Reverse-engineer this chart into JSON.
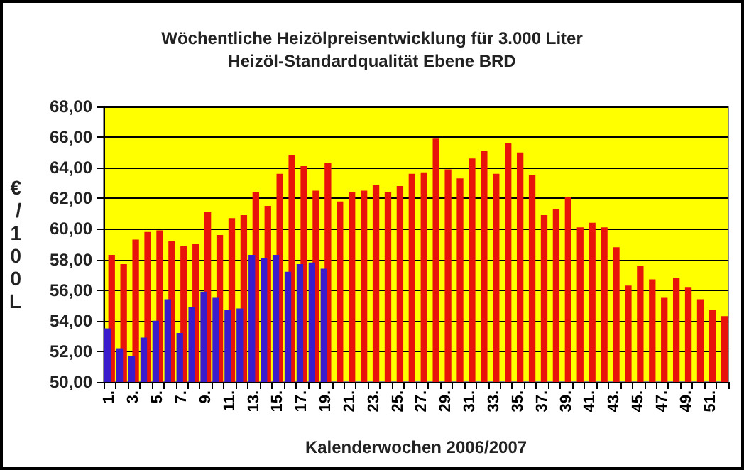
{
  "chart_data": {
    "type": "bar",
    "title": "Wöchentliche Heizölpreisentwicklung für 3.000 Liter",
    "subtitle": "Heizöl-Standardqualität Ebene BRD",
    "xlabel": "Kalenderwochen 2006/2007",
    "ylabel": "€/100L",
    "categories": [
      "1.",
      null,
      "3.",
      null,
      "5.",
      null,
      "7.",
      null,
      "9.",
      null,
      "11.",
      null,
      "13.",
      null,
      "15.",
      null,
      "17.",
      null,
      "19.",
      null,
      "21.",
      null,
      "23.",
      null,
      "25.",
      null,
      "27.",
      null,
      "29.",
      null,
      "31.",
      null,
      "33.",
      null,
      "35.",
      null,
      "37.",
      null,
      "39.",
      null,
      "41.",
      null,
      "43.",
      null,
      "45.",
      null,
      "47.",
      null,
      "49.",
      null,
      "51.",
      null
    ],
    "series": [
      {
        "color": "#e8140c",
        "values": [
          58.3,
          57.7,
          59.3,
          59.8,
          59.9,
          59.2,
          58.9,
          59.0,
          61.1,
          59.6,
          60.7,
          60.9,
          62.4,
          61.5,
          63.6,
          64.8,
          64.1,
          62.5,
          64.3,
          61.8,
          62.4,
          62.5,
          62.9,
          62.4,
          62.8,
          63.6,
          63.7,
          65.9,
          63.9,
          63.3,
          64.6,
          65.1,
          63.6,
          65.6,
          65.0,
          63.5,
          60.9,
          61.3,
          62.1,
          60.1,
          60.4,
          60.1,
          58.8,
          56.3,
          57.6,
          56.7,
          55.5,
          56.8,
          56.2,
          55.4,
          54.7,
          54.3
        ]
      },
      {
        "color": "#3a1ccc",
        "values": [
          53.5,
          52.2,
          51.7,
          52.9,
          54.0,
          55.4,
          53.2,
          54.9,
          55.9,
          55.5,
          54.7,
          54.8,
          58.3,
          58.1,
          58.3,
          57.2,
          57.7,
          57.8,
          57.4,
          null,
          null,
          null,
          null,
          null,
          null,
          null,
          null,
          null,
          null,
          null,
          null,
          null,
          null,
          null,
          null,
          null,
          null,
          null,
          null,
          null,
          null,
          null,
          null,
          null,
          null,
          null,
          null,
          null,
          null,
          null,
          null,
          null
        ]
      }
    ],
    "ylim": [
      50,
      68
    ],
    "yticks": [
      {
        "value": 50,
        "label": "50,00"
      },
      {
        "value": 52,
        "label": "52,00"
      },
      {
        "value": 54,
        "label": "54,00"
      },
      {
        "value": 56,
        "label": "56,00"
      },
      {
        "value": 58,
        "label": "58,00"
      },
      {
        "value": 60,
        "label": "60,00"
      },
      {
        "value": 62,
        "label": "62,00"
      },
      {
        "value": 64,
        "label": "64,00"
      },
      {
        "value": 66,
        "label": "66,00"
      },
      {
        "value": 68,
        "label": "68,00"
      }
    ],
    "grid": "y"
  }
}
